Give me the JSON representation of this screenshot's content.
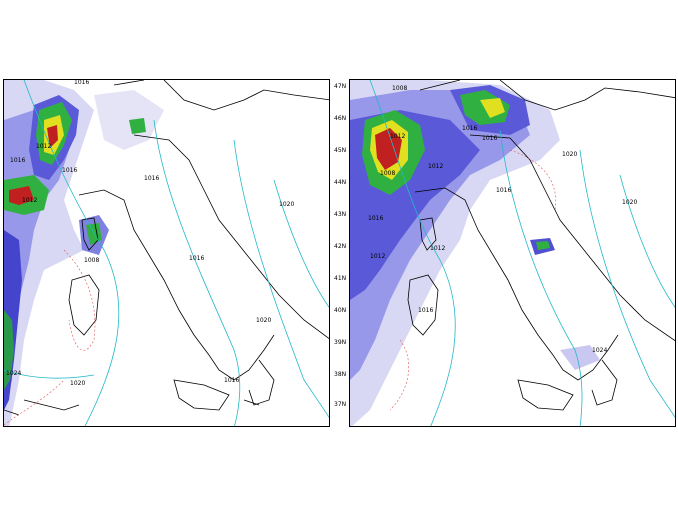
{
  "panels": [
    {
      "id": "left",
      "isobar_labels": [
        "1016",
        "1016",
        "1012",
        "1016",
        "1012",
        "1008",
        "1016",
        "1016",
        "1020",
        "1020",
        "1024",
        "1020",
        "1016"
      ]
    },
    {
      "id": "right",
      "isobar_labels": [
        "1008",
        "1016",
        "1012",
        "1012",
        "1008",
        "1016",
        "1012",
        "1012",
        "1016",
        "1016",
        "1020",
        "1024",
        "1020",
        "1016"
      ]
    }
  ],
  "latitude_labels": [
    "47N",
    "46N",
    "45N",
    "44N",
    "43N",
    "42N",
    "41N",
    "40N",
    "39N",
    "38N",
    "37N"
  ],
  "colors": {
    "coast": "#000000",
    "isobar": "#22b8c8",
    "contour_red": "#e05050",
    "precip_light": "#c8c8f0",
    "precip_mid": "#7070e0",
    "precip_blue": "#3030c0",
    "precip_green": "#20b040",
    "precip_yellow": "#e0e020",
    "precip_red": "#c02020"
  }
}
